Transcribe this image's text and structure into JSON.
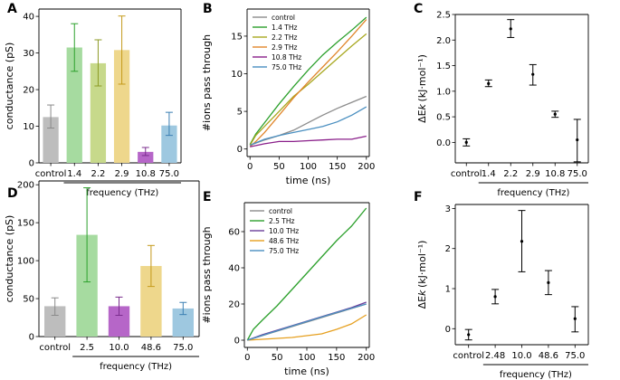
{
  "chart_data": [
    {
      "panel": "A",
      "type": "bar",
      "ylabel": "conductance (pS)",
      "xlabel": "frequency (THz)",
      "ylim": [
        0,
        42
      ],
      "yticks": [
        0,
        10,
        20,
        30,
        40
      ],
      "categories": [
        "control",
        "1.4",
        "2.2",
        "2.9",
        "10.8",
        "75.0"
      ],
      "values": [
        12.5,
        31.5,
        27.2,
        30.8,
        3.0,
        10.2
      ],
      "err_low": [
        9.5,
        25.0,
        21.0,
        21.5,
        2.0,
        7.5
      ],
      "err_high": [
        15.8,
        38.0,
        33.6,
        40.1,
        4.2,
        13.8
      ],
      "colors": [
        "#bdbdbd",
        "#a6dba0",
        "#c7d98b",
        "#eed78c",
        "#b666c8",
        "#9ec8e0"
      ],
      "edge_colors": [
        "#8a8a8a",
        "#2ca02c",
        "#8c9a24",
        "#c49a1a",
        "#7b2d8e",
        "#3b7fb3"
      ]
    },
    {
      "panel": "B",
      "type": "line",
      "ylabel": "#ions pass through",
      "xlabel": "time (ns)",
      "xlim": [
        -5,
        205
      ],
      "ylim": [
        -1,
        18.6
      ],
      "xticks": [
        0,
        50,
        100,
        150,
        200
      ],
      "yticks": [
        0,
        5,
        10,
        15
      ],
      "legend_position": "top-left",
      "series": [
        {
          "name": "control",
          "color": "#8c8c8c",
          "x": [
            0,
            25,
            50,
            75,
            100,
            125,
            150,
            175,
            200
          ],
          "y": [
            0.5,
            1.2,
            1.8,
            2.5,
            3.5,
            4.5,
            5.4,
            6.2,
            7.0
          ]
        },
        {
          "name": "1.4 THz",
          "color": "#2ca02c",
          "x": [
            0,
            10,
            25,
            50,
            75,
            100,
            125,
            150,
            175,
            200
          ],
          "y": [
            0.6,
            2.0,
            3.5,
            6.0,
            8.3,
            10.5,
            12.5,
            14.2,
            15.8,
            17.5
          ]
        },
        {
          "name": "2.2 THz",
          "color": "#a8a820",
          "x": [
            0,
            10,
            25,
            50,
            75,
            100,
            125,
            150,
            175,
            200
          ],
          "y": [
            0.5,
            1.8,
            3.0,
            5.0,
            7.0,
            8.6,
            10.3,
            12.0,
            13.7,
            15.3
          ]
        },
        {
          "name": "2.9 THz",
          "color": "#e0852a",
          "x": [
            0,
            10,
            25,
            50,
            75,
            100,
            125,
            150,
            175,
            200
          ],
          "y": [
            0.3,
            1.0,
            2.2,
            4.5,
            6.8,
            8.9,
            10.9,
            12.9,
            15.0,
            17.2
          ]
        },
        {
          "name": "10.8 THz",
          "color": "#8a1f8a",
          "x": [
            0,
            25,
            50,
            75,
            100,
            125,
            150,
            175,
            200
          ],
          "y": [
            0.3,
            0.7,
            1.0,
            1.0,
            1.1,
            1.2,
            1.3,
            1.3,
            1.7
          ]
        },
        {
          "name": "75.0 THz",
          "color": "#4a8fc0",
          "x": [
            0,
            25,
            50,
            75,
            100,
            125,
            150,
            175,
            200
          ],
          "y": [
            0.5,
            1.3,
            1.8,
            2.2,
            2.6,
            3.0,
            3.6,
            4.5,
            5.6
          ]
        }
      ]
    },
    {
      "panel": "C",
      "type": "scatter",
      "ylabel": "ΔE_k (kJ·mol⁻¹)",
      "xlabel": "frequency (THz)",
      "ylim": [
        -0.4,
        2.5
      ],
      "yticks": [
        0.0,
        0.5,
        1.0,
        1.5,
        2.0,
        2.5
      ],
      "categories": [
        "control",
        "1.4",
        "2.2",
        "2.9",
        "10.8",
        "75.0"
      ],
      "values": [
        0.0,
        1.15,
        2.22,
        1.33,
        0.55,
        0.05
      ],
      "err_low": [
        -0.07,
        1.09,
        2.05,
        1.12,
        0.49,
        -0.38
      ],
      "err_high": [
        0.07,
        1.22,
        2.4,
        1.52,
        0.61,
        0.45
      ]
    },
    {
      "panel": "D",
      "type": "bar",
      "ylabel": "conductance (pS)",
      "xlabel": "frequency (THz)",
      "ylim": [
        0,
        205
      ],
      "yticks": [
        0,
        50,
        100,
        150,
        200
      ],
      "categories": [
        "control",
        "2.5",
        "10.0",
        "48.6",
        "75.0"
      ],
      "values": [
        40,
        134,
        40,
        93,
        37
      ],
      "err_low": [
        28,
        72,
        28,
        66,
        29
      ],
      "err_high": [
        51,
        196,
        52,
        120,
        45
      ],
      "colors": [
        "#bdbdbd",
        "#a6dba0",
        "#b666c8",
        "#eed78c",
        "#9ec8e0"
      ],
      "edge_colors": [
        "#8a8a8a",
        "#2ca02c",
        "#7b2d8e",
        "#c49a1a",
        "#3b7fb3"
      ]
    },
    {
      "panel": "E",
      "type": "line",
      "ylabel": "#ions pass through",
      "xlabel": "time (ns)",
      "xlim": [
        -5,
        205
      ],
      "ylim": [
        -4,
        76
      ],
      "xticks": [
        0,
        50,
        100,
        150,
        200
      ],
      "yticks": [
        0,
        20,
        40,
        60
      ],
      "legend_position": "top-left",
      "series": [
        {
          "name": "control",
          "color": "#8c8c8c",
          "x": [
            0,
            25,
            50,
            75,
            100,
            125,
            150,
            175,
            200
          ],
          "y": [
            0,
            2.5,
            5.0,
            7.5,
            10.0,
            12.5,
            15.0,
            17.5,
            20.0
          ]
        },
        {
          "name": "2.5 THz",
          "color": "#2ca02c",
          "x": [
            0,
            10,
            25,
            50,
            75,
            100,
            125,
            150,
            175,
            200
          ],
          "y": [
            0,
            6,
            11,
            19,
            28,
            37,
            46,
            55,
            63,
            73
          ]
        },
        {
          "name": "10.0 THz",
          "color": "#6a3d9a",
          "x": [
            0,
            25,
            50,
            75,
            100,
            125,
            150,
            175,
            200
          ],
          "y": [
            0,
            3.0,
            5.5,
            8.0,
            10.5,
            13.0,
            15.5,
            18.0,
            21.0
          ]
        },
        {
          "name": "48.6 THz",
          "color": "#e6a020",
          "x": [
            0,
            25,
            50,
            75,
            100,
            125,
            150,
            175,
            200
          ],
          "y": [
            0,
            0.5,
            1.0,
            1.5,
            2.5,
            3.5,
            6.0,
            9.0,
            14.0
          ]
        },
        {
          "name": "75.0 THz",
          "color": "#4a8fc0",
          "x": [
            0,
            25,
            50,
            75,
            100,
            125,
            150,
            175,
            200
          ],
          "y": [
            0,
            2.6,
            5.2,
            7.8,
            10.3,
            12.8,
            15.3,
            17.6,
            20.0
          ]
        }
      ]
    },
    {
      "panel": "F",
      "type": "scatter",
      "ylabel": "ΔE_k (kJ·mol⁻¹)",
      "xlabel": "frequency (THz)",
      "ylim": [
        -0.4,
        3.1
      ],
      "yticks": [
        0,
        1,
        2,
        3
      ],
      "categories": [
        "control",
        "2.48",
        "10.0",
        "48.6",
        "75.0"
      ],
      "values": [
        -0.15,
        0.8,
        2.18,
        1.15,
        0.25
      ],
      "err_low": [
        -0.28,
        0.62,
        1.42,
        0.85,
        -0.08
      ],
      "err_high": [
        -0.02,
        0.98,
        2.95,
        1.45,
        0.55
      ]
    }
  ]
}
